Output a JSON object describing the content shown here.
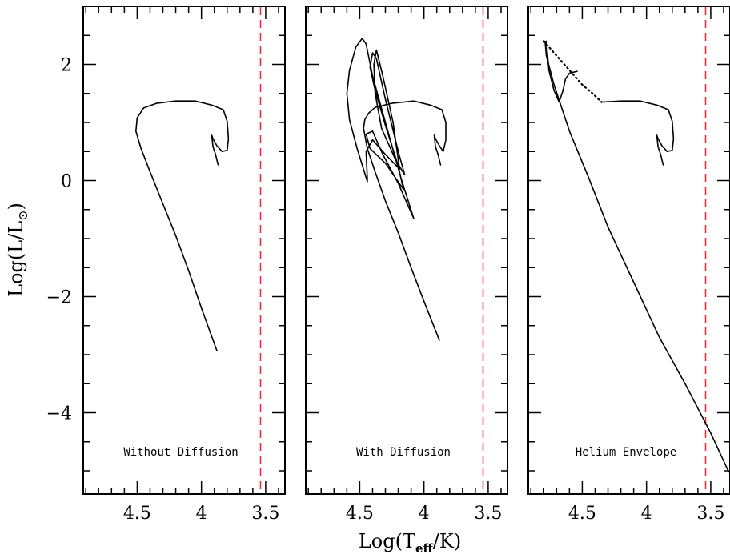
{
  "chart_data": {
    "type": "line",
    "xlabel": "Log(T_eff/K)",
    "ylabel": "Log(L/L_sun)",
    "xlim": [
      4.92,
      3.35
    ],
    "ylim": [
      -5.4,
      3.0
    ],
    "x_ticks": [
      "4.5",
      "4",
      "3.5"
    ],
    "y_ticks": [
      "2",
      "0",
      "−2",
      "−4"
    ],
    "x_tick_values": [
      4.5,
      4.0,
      3.5
    ],
    "y_tick_values": [
      2,
      0,
      -2,
      -4
    ],
    "grid": false,
    "reference_line": {
      "x": 3.54,
      "style": "dashed",
      "color": "#e8313c"
    },
    "panels": [
      {
        "label": "Without Diffusion",
        "series": [
          {
            "style": "solid",
            "points": [
              [
                3.88,
                -2.93
              ],
              [
                4.0,
                -2.2
              ],
              [
                4.1,
                -1.55
              ],
              [
                4.2,
                -0.95
              ],
              [
                4.3,
                -0.4
              ],
              [
                4.4,
                0.15
              ],
              [
                4.47,
                0.55
              ],
              [
                4.51,
                0.85
              ],
              [
                4.5,
                1.08
              ],
              [
                4.45,
                1.25
              ],
              [
                4.35,
                1.33
              ],
              [
                4.2,
                1.37
              ],
              [
                4.05,
                1.37
              ],
              [
                3.92,
                1.3
              ],
              [
                3.83,
                1.22
              ],
              [
                3.8,
                1.02
              ],
              [
                3.79,
                0.72
              ],
              [
                3.8,
                0.52
              ],
              [
                3.84,
                0.5
              ],
              [
                3.88,
                0.6
              ],
              [
                3.91,
                0.72
              ],
              [
                3.92,
                0.78
              ],
              [
                3.91,
                0.58
              ],
              [
                3.89,
                0.45
              ],
              [
                3.87,
                0.27
              ]
            ]
          }
        ]
      },
      {
        "label": "With Diffusion",
        "series": [
          {
            "style": "solid",
            "points": [
              [
                3.88,
                -2.75
              ],
              [
                4.0,
                -2.08
              ],
              [
                4.1,
                -1.5
              ],
              [
                4.2,
                -0.9
              ],
              [
                4.3,
                -0.35
              ],
              [
                4.38,
                0.15
              ],
              [
                4.44,
                0.55
              ],
              [
                4.47,
                0.9
              ],
              [
                4.46,
                1.05
              ],
              [
                4.43,
                1.16
              ],
              [
                4.38,
                1.26
              ],
              [
                4.25,
                1.33
              ],
              [
                4.08,
                1.37
              ],
              [
                3.95,
                1.3
              ],
              [
                3.86,
                1.22
              ],
              [
                3.83,
                1.0
              ],
              [
                3.83,
                0.7
              ],
              [
                3.85,
                0.5
              ],
              [
                3.88,
                0.6
              ],
              [
                3.91,
                0.72
              ],
              [
                3.92,
                0.78
              ],
              [
                3.91,
                0.58
              ],
              [
                3.89,
                0.45
              ],
              [
                3.87,
                0.27
              ]
            ]
          },
          {
            "style": "solid",
            "points": [
              [
                4.44,
                -0.02
              ],
              [
                4.52,
                0.55
              ],
              [
                4.58,
                1.05
              ],
              [
                4.6,
                1.5
              ],
              [
                4.58,
                1.9
              ],
              [
                4.53,
                2.3
              ],
              [
                4.48,
                2.45
              ],
              [
                4.45,
                2.35
              ],
              [
                4.4,
                1.8
              ],
              [
                4.3,
                1.0
              ],
              [
                4.18,
                0.05
              ],
              [
                4.08,
                -0.65
              ],
              [
                4.1,
                -0.55
              ],
              [
                4.2,
                -0.05
              ],
              [
                4.32,
                0.45
              ],
              [
                4.4,
                0.85
              ],
              [
                4.45,
                0.8
              ],
              [
                4.42,
                0.55
              ],
              [
                4.3,
                0.3
              ],
              [
                4.16,
                -0.15
              ],
              [
                4.2,
                0.25
              ],
              [
                4.3,
                0.95
              ],
              [
                4.38,
                1.55
              ],
              [
                4.42,
                1.95
              ],
              [
                4.4,
                2.2
              ],
              [
                4.37,
                2.1
              ],
              [
                4.3,
                1.4
              ],
              [
                4.2,
                0.5
              ],
              [
                4.15,
                0.1
              ],
              [
                4.22,
                0.35
              ],
              [
                4.33,
                0.9
              ],
              [
                4.38,
                1.5
              ],
              [
                4.39,
                2.0
              ],
              [
                4.37,
                2.25
              ],
              [
                4.32,
                1.8
              ],
              [
                4.24,
                1.0
              ],
              [
                4.19,
                0.2
              ],
              [
                4.3,
                0.45
              ],
              [
                4.4,
                0.7
              ],
              [
                4.45,
                0.5
              ],
              [
                4.44,
                0.0
              ]
            ]
          }
        ]
      },
      {
        "label": "Helium Envelope",
        "series": [
          {
            "style": "solid",
            "points": [
              [
                3.36,
                -5.02
              ],
              [
                3.5,
                -4.35
              ],
              [
                3.7,
                -3.5
              ],
              [
                3.9,
                -2.7
              ],
              [
                4.1,
                -1.75
              ],
              [
                4.3,
                -0.8
              ],
              [
                4.45,
                0.05
              ],
              [
                4.6,
                0.85
              ],
              [
                4.72,
                1.65
              ],
              [
                4.78,
                2.15
              ],
              [
                4.79,
                2.4
              ]
            ]
          },
          {
            "style": "solid",
            "points": [
              [
                4.78,
                2.4
              ],
              [
                4.76,
                1.9
              ],
              [
                4.72,
                1.55
              ],
              [
                4.68,
                1.35
              ],
              [
                4.65,
                1.55
              ],
              [
                4.63,
                1.75
              ],
              [
                4.6,
                1.85
              ],
              [
                4.54,
                1.88
              ]
            ]
          },
          {
            "style": "dotted",
            "points": [
              [
                4.8,
                2.4
              ],
              [
                4.7,
                2.15
              ],
              [
                4.6,
                1.9
              ],
              [
                4.5,
                1.65
              ],
              [
                4.42,
                1.5
              ],
              [
                4.35,
                1.35
              ]
            ]
          },
          {
            "style": "solid",
            "points": [
              [
                4.35,
                1.35
              ],
              [
                4.2,
                1.37
              ],
              [
                4.05,
                1.37
              ],
              [
                3.92,
                1.3
              ],
              [
                3.83,
                1.22
              ],
              [
                3.8,
                1.02
              ],
              [
                3.79,
                0.72
              ],
              [
                3.8,
                0.52
              ],
              [
                3.84,
                0.5
              ],
              [
                3.88,
                0.6
              ],
              [
                3.91,
                0.72
              ],
              [
                3.92,
                0.78
              ],
              [
                3.91,
                0.58
              ],
              [
                3.89,
                0.45
              ],
              [
                3.87,
                0.27
              ]
            ]
          }
        ]
      }
    ]
  }
}
